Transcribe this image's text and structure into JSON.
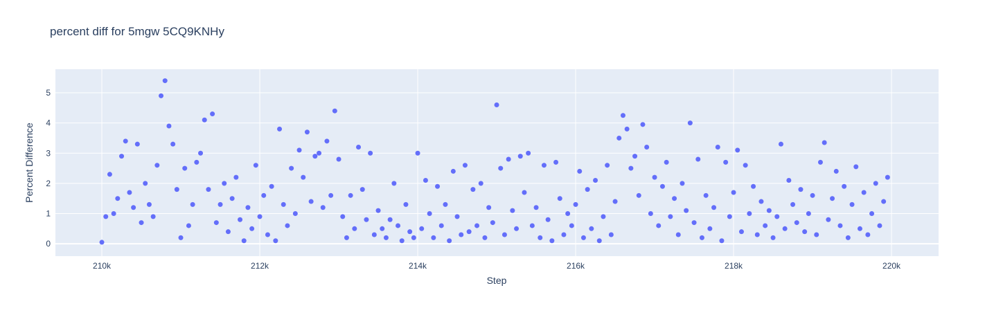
{
  "chart_data": {
    "type": "scatter",
    "title": "percent diff for 5mgw 5CQ9KNHy",
    "x_label": "Step",
    "y_label": "Percent Difference",
    "grid": true,
    "background": "#e5ecf6",
    "xlim": [
      209412,
      220596
    ],
    "ylim": [
      -0.41,
      5.78
    ],
    "xticks": [
      {
        "value": 210000,
        "label": "210k"
      },
      {
        "value": 212000,
        "label": "212k"
      },
      {
        "value": 214000,
        "label": "214k"
      },
      {
        "value": 216000,
        "label": "216k"
      },
      {
        "value": 218000,
        "label": "218k"
      },
      {
        "value": 220000,
        "label": "220k"
      }
    ],
    "yticks": [
      0,
      1,
      2,
      3,
      4,
      5
    ],
    "series": [
      {
        "color": "#636efa",
        "x": [
          210000,
          210050,
          210100,
          210150,
          210200,
          210250,
          210300,
          210350,
          210400,
          210450,
          210500,
          210550,
          210600,
          210650,
          210700,
          210750,
          210800,
          210850,
          210900,
          210950,
          211000,
          211050,
          211100,
          211150,
          211200,
          211250,
          211300,
          211350,
          211400,
          211450,
          211500,
          211550,
          211600,
          211650,
          211700,
          211750,
          211800,
          211850,
          211900,
          211950,
          212000,
          212050,
          212100,
          212150,
          212200,
          212250,
          212300,
          212350,
          212400,
          212450,
          212500,
          212550,
          212600,
          212650,
          212700,
          212750,
          212800,
          212850,
          212900,
          212950,
          213000,
          213050,
          213100,
          213150,
          213200,
          213250,
          213300,
          213350,
          213400,
          213450,
          213500,
          213550,
          213600,
          213650,
          213700,
          213750,
          213800,
          213850,
          213900,
          213950,
          214000,
          214050,
          214100,
          214150,
          214200,
          214250,
          214300,
          214350,
          214400,
          214450,
          214500,
          214550,
          214600,
          214650,
          214700,
          214750,
          214800,
          214850,
          214900,
          214950,
          215000,
          215050,
          215100,
          215150,
          215200,
          215250,
          215300,
          215350,
          215400,
          215450,
          215500,
          215550,
          215600,
          215650,
          215700,
          215750,
          215800,
          215850,
          215900,
          215950,
          216000,
          216050,
          216100,
          216150,
          216200,
          216250,
          216300,
          216350,
          216400,
          216450,
          216500,
          216550,
          216600,
          216650,
          216700,
          216750,
          216800,
          216850,
          216900,
          216950,
          217000,
          217050,
          217100,
          217150,
          217200,
          217250,
          217300,
          217350,
          217400,
          217450,
          217500,
          217550,
          217600,
          217650,
          217700,
          217750,
          217800,
          217850,
          217900,
          217950,
          218000,
          218050,
          218100,
          218150,
          218200,
          218250,
          218300,
          218350,
          218400,
          218450,
          218500,
          218550,
          218600,
          218650,
          218700,
          218750,
          218800,
          218850,
          218900,
          218950,
          219000,
          219050,
          219100,
          219150,
          219200,
          219250,
          219300,
          219350,
          219400,
          219450,
          219500,
          219550,
          219600,
          219650,
          219700,
          219750,
          219800,
          219850,
          219900,
          219950
        ],
        "values": [
          0.05,
          0.9,
          2.3,
          1.0,
          1.5,
          2.9,
          3.4,
          1.7,
          1.2,
          3.3,
          0.7,
          2.0,
          1.3,
          0.9,
          2.6,
          4.9,
          5.4,
          3.9,
          3.3,
          1.8,
          0.2,
          2.5,
          0.6,
          1.3,
          2.7,
          3.0,
          4.1,
          1.8,
          4.3,
          0.7,
          1.3,
          2.0,
          0.4,
          1.5,
          2.2,
          0.8,
          0.1,
          1.2,
          0.5,
          2.6,
          0.9,
          1.6,
          0.3,
          1.9,
          0.1,
          3.8,
          1.3,
          0.6,
          2.5,
          1.0,
          3.1,
          2.2,
          3.7,
          1.4,
          2.9,
          3.0,
          1.2,
          3.4,
          1.6,
          4.4,
          2.8,
          0.9,
          0.2,
          1.6,
          0.5,
          3.2,
          1.8,
          0.8,
          3.0,
          0.3,
          1.1,
          0.5,
          0.2,
          0.8,
          2.0,
          0.6,
          0.1,
          1.3,
          0.4,
          0.2,
          3.0,
          0.5,
          2.1,
          1.0,
          0.2,
          1.9,
          0.6,
          1.3,
          0.1,
          2.4,
          0.9,
          0.3,
          2.6,
          0.4,
          1.8,
          0.6,
          2.0,
          0.2,
          1.2,
          0.7,
          4.6,
          2.5,
          0.3,
          2.8,
          1.1,
          0.5,
          2.9,
          1.7,
          3.0,
          0.6,
          1.2,
          0.2,
          2.6,
          0.8,
          0.1,
          2.7,
          1.5,
          0.3,
          1.0,
          0.6,
          1.3,
          2.4,
          0.2,
          1.8,
          0.5,
          2.1,
          0.1,
          0.9,
          2.6,
          0.3,
          1.4,
          3.5,
          4.25,
          3.8,
          2.5,
          2.9,
          1.6,
          3.95,
          3.2,
          1.0,
          2.2,
          0.6,
          1.9,
          2.7,
          0.9,
          1.5,
          0.3,
          2.0,
          1.1,
          4.0,
          0.7,
          2.8,
          0.2,
          1.6,
          0.5,
          1.2,
          3.2,
          0.1,
          2.7,
          0.9,
          1.7,
          3.1,
          0.4,
          2.6,
          1.0,
          1.9,
          0.3,
          1.4,
          0.6,
          1.1,
          0.2,
          0.9,
          3.3,
          0.5,
          2.1,
          1.3,
          0.7,
          1.8,
          0.4,
          1.0,
          1.6,
          0.3,
          2.7,
          3.35,
          0.8,
          1.5,
          2.4,
          0.6,
          1.9,
          0.2,
          1.3,
          2.55,
          0.5,
          1.7,
          0.3,
          1.0,
          2.0,
          0.6,
          1.4,
          2.2
        ]
      }
    ]
  }
}
